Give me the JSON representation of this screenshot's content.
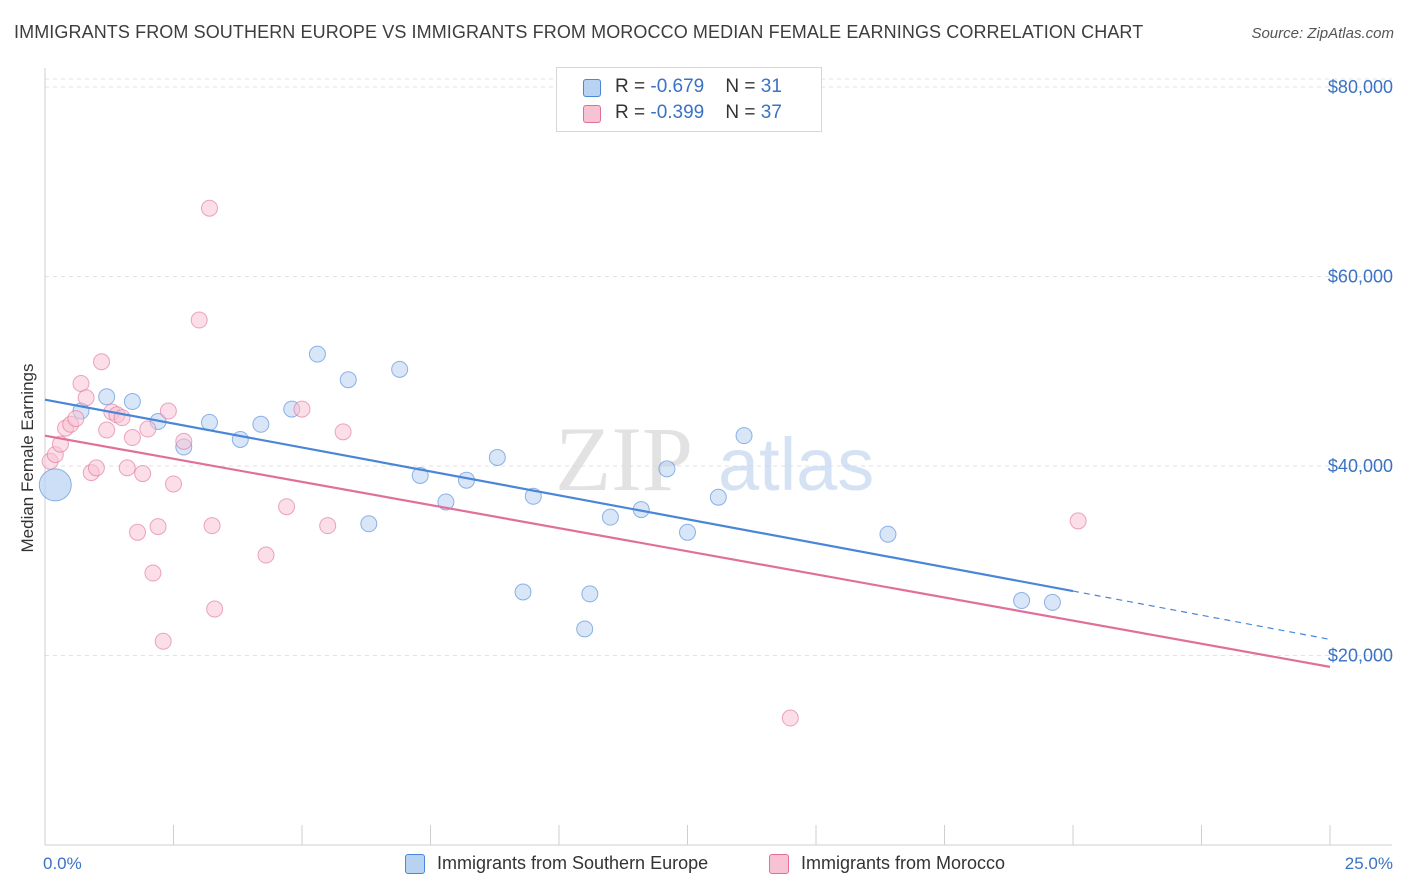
{
  "title": "IMMIGRANTS FROM SOUTHERN EUROPE VS IMMIGRANTS FROM MOROCCO MEDIAN FEMALE EARNINGS CORRELATION CHART",
  "source": "Source: ZipAtlas.com",
  "watermark": {
    "zip": "ZIP",
    "atlas": "atlas"
  },
  "legend": {
    "rows": [
      {
        "r_label": "R = ",
        "r_value": "-0.679",
        "n_label": "N = ",
        "n_value": "31"
      },
      {
        "r_label": "R = ",
        "r_value": "-0.399",
        "n_label": "N = ",
        "n_value": "37"
      }
    ]
  },
  "chart_data": {
    "type": "scatter",
    "title": "IMMIGRANTS FROM SOUTHERN EUROPE VS IMMIGRANTS FROM MOROCCO MEDIAN FEMALE EARNINGS CORRELATION CHART",
    "xlabel": "",
    "ylabel": "Median Female Earnings",
    "xlim": [
      0,
      25
    ],
    "ylim": [
      0,
      82000
    ],
    "x_tick_labels": [
      "0.0%",
      "25.0%"
    ],
    "y_ticks": [
      {
        "value": 20000,
        "label": "$20,000"
      },
      {
        "value": 40000,
        "label": "$40,000"
      },
      {
        "value": 60000,
        "label": "$60,000"
      },
      {
        "value": 80000,
        "label": "$80,000"
      }
    ],
    "grid": true,
    "legend_position": "top-center",
    "series": [
      {
        "name": "Immigrants from Southern Europe",
        "color": "#4a86d8",
        "fill": "#b8d2f2",
        "trend": {
          "x0": 0,
          "y0": 47000,
          "x1": 20,
          "y1": 26800,
          "dash_to_x": 25,
          "dash_to_y": 21700
        },
        "points": [
          [
            0.2,
            38000
          ],
          [
            0.7,
            45800
          ],
          [
            1.2,
            47300
          ],
          [
            1.7,
            46800
          ],
          [
            2.2,
            44700
          ],
          [
            2.7,
            42000
          ],
          [
            3.2,
            44600
          ],
          [
            3.8,
            42800
          ],
          [
            4.2,
            44400
          ],
          [
            4.8,
            46000
          ],
          [
            5.3,
            51800
          ],
          [
            5.9,
            49100
          ],
          [
            6.3,
            33900
          ],
          [
            6.9,
            50200
          ],
          [
            7.3,
            39000
          ],
          [
            7.8,
            36200
          ],
          [
            8.2,
            38500
          ],
          [
            8.8,
            40900
          ],
          [
            9.3,
            26700
          ],
          [
            9.5,
            36800
          ],
          [
            10.5,
            22800
          ],
          [
            10.6,
            26500
          ],
          [
            11.0,
            34600
          ],
          [
            11.6,
            35400
          ],
          [
            12.1,
            39700
          ],
          [
            12.5,
            33000
          ],
          [
            13.1,
            36700
          ],
          [
            13.6,
            43200
          ],
          [
            16.4,
            32800
          ],
          [
            19.0,
            25800
          ],
          [
            19.6,
            25600
          ]
        ]
      },
      {
        "name": "Immigrants from Morocco",
        "color": "#e0709a",
        "fill": "#f7c2d3",
        "trend": {
          "x0": 0,
          "y0": 43200,
          "x1": 25,
          "y1": 18800
        },
        "points": [
          [
            0.1,
            40500
          ],
          [
            0.2,
            41200
          ],
          [
            0.3,
            42300
          ],
          [
            0.4,
            44000
          ],
          [
            0.5,
            44400
          ],
          [
            0.6,
            45000
          ],
          [
            0.7,
            48700
          ],
          [
            0.8,
            47200
          ],
          [
            0.9,
            39300
          ],
          [
            1.0,
            39800
          ],
          [
            1.1,
            51000
          ],
          [
            1.2,
            43800
          ],
          [
            1.3,
            45700
          ],
          [
            1.4,
            45400
          ],
          [
            1.5,
            45100
          ],
          [
            1.6,
            39800
          ],
          [
            1.7,
            43000
          ],
          [
            1.8,
            33000
          ],
          [
            1.9,
            39200
          ],
          [
            2.0,
            43900
          ],
          [
            2.1,
            28700
          ],
          [
            2.2,
            33600
          ],
          [
            2.3,
            21500
          ],
          [
            2.4,
            45800
          ],
          [
            2.5,
            38100
          ],
          [
            2.7,
            42600
          ],
          [
            3.0,
            55400
          ],
          [
            3.2,
            67200
          ],
          [
            3.25,
            33700
          ],
          [
            3.3,
            24900
          ],
          [
            4.3,
            30600
          ],
          [
            4.7,
            35700
          ],
          [
            5.0,
            46000
          ],
          [
            5.5,
            33700
          ],
          [
            5.8,
            43600
          ],
          [
            14.5,
            13400
          ],
          [
            20.1,
            34200
          ]
        ]
      }
    ]
  }
}
